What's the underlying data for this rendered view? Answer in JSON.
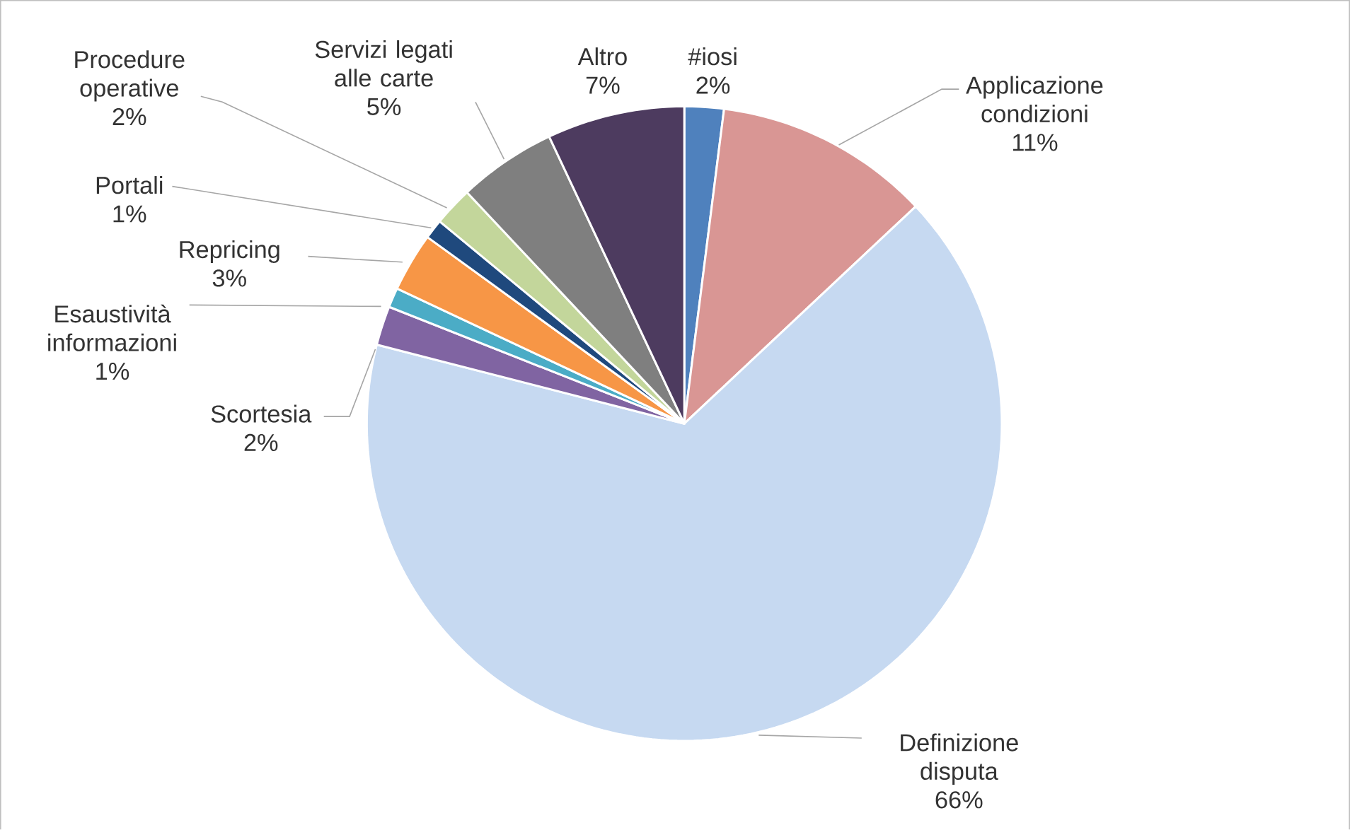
{
  "chart_data": {
    "type": "pie",
    "categories": [
      "#iosi",
      "Applicazione condizioni",
      "Definizione disputa",
      "Scortesia",
      "Esaustività informazioni",
      "Repricing",
      "Portali",
      "Procedure operative",
      "Servizi legati alle carte",
      "Altro"
    ],
    "values": [
      2,
      11,
      66,
      2,
      1,
      3,
      1,
      2,
      5,
      7
    ],
    "value_labels": [
      "2%",
      "11%",
      "66%",
      "2%",
      "1%",
      "3%",
      "1%",
      "2%",
      "5%",
      "7%"
    ],
    "colors": [
      "#4f81bd",
      "#d99694",
      "#c6d9f1",
      "#8064a2",
      "#4bacc6",
      "#f79646",
      "#1f497d",
      "#c3d69b",
      "#7f7f7f",
      "#4d3b5f"
    ]
  }
}
